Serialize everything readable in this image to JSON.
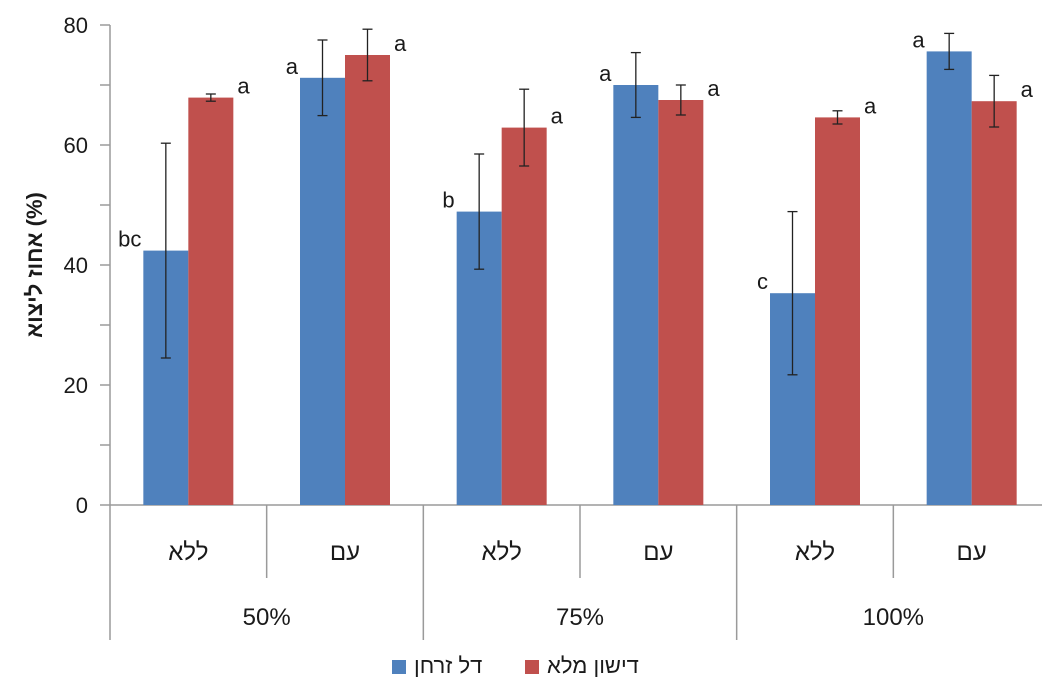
{
  "chart_data": {
    "type": "bar",
    "title": "",
    "xlabel": "",
    "ylabel": "אחוז ליצוא (%)",
    "ylim": [
      0,
      80
    ],
    "yticks": [
      0,
      20,
      40,
      60,
      80
    ],
    "grid": false,
    "legend_position": "bottom",
    "groups": [
      {
        "label": "50%",
        "categories": [
          "ללא",
          "עם"
        ]
      },
      {
        "label": "75%",
        "categories": [
          "ללא",
          "עם"
        ]
      },
      {
        "label": "100%",
        "categories": [
          "ללא",
          "עם"
        ]
      }
    ],
    "categories": [
      "ללא",
      "עם",
      "ללא",
      "עם",
      "ללא",
      "עם"
    ],
    "series": [
      {
        "name": "דל זרחן",
        "color": "#4f81bd",
        "values": [
          42.4,
          71.2,
          48.9,
          70.0,
          35.3,
          75.6
        ],
        "error": [
          17.9,
          6.3,
          9.6,
          5.4,
          13.6,
          3.0
        ],
        "letters": [
          "bc",
          "a",
          "b",
          "a",
          "c",
          "a"
        ]
      },
      {
        "name": "דישון מלא",
        "color": "#c0504d",
        "values": [
          67.9,
          75.0,
          62.9,
          67.5,
          64.6,
          67.3
        ],
        "error": [
          0.6,
          4.3,
          6.4,
          2.5,
          1.1,
          4.3
        ],
        "letters": [
          "a",
          "a",
          "a",
          "a",
          "a",
          "a"
        ]
      }
    ]
  }
}
